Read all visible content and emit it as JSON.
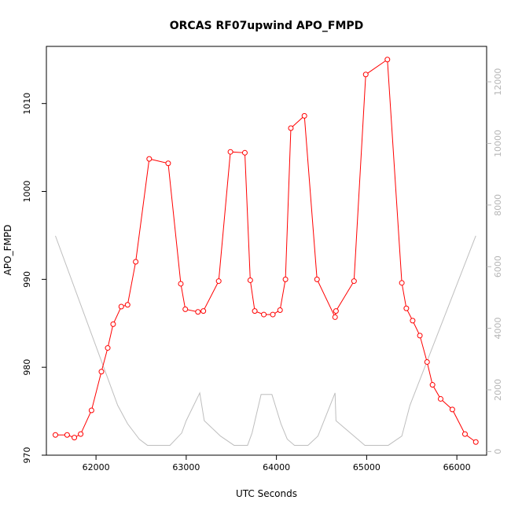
{
  "chart_data": {
    "type": "line",
    "title": "ORCAS RF07upwind APO_FMPD",
    "xlabel": "UTC Seconds",
    "ylabel": "APO_FMPD",
    "xlim": [
      61450,
      66330
    ],
    "ylim": [
      970,
      1016.5
    ],
    "y2lim": [
      -120,
      13150
    ],
    "x_ticks": [
      62000,
      63000,
      64000,
      65000,
      66000
    ],
    "y_ticks": [
      970,
      980,
      990,
      1000,
      1010
    ],
    "y2_ticks": [
      0,
      2000,
      4000,
      6000,
      8000,
      10000,
      12000
    ],
    "grid": false,
    "series": [
      {
        "color": "#ff0000",
        "marker": "circle",
        "x": [
          61550,
          61680,
          61760,
          61830,
          61950,
          62060,
          62130,
          62190,
          62280,
          62350,
          62440,
          62590,
          62800,
          62940,
          62990,
          63130,
          63190,
          63360,
          63490,
          63650,
          63710,
          63760,
          63860,
          63960,
          64040,
          64100,
          64160,
          64310,
          64450,
          64650,
          64660,
          64860,
          64990,
          65230,
          65390,
          65440,
          65510,
          65590,
          65670,
          65730,
          65820,
          65950,
          66090,
          66210
        ],
        "y": [
          972.3,
          972.3,
          972.0,
          972.4,
          975.1,
          979.5,
          982.2,
          984.9,
          986.9,
          987.1,
          992.0,
          1003.7,
          1003.2,
          989.5,
          986.6,
          986.3,
          986.4,
          989.8,
          1004.5,
          1004.4,
          989.9,
          986.4,
          986.0,
          986.0,
          986.5,
          990.0,
          1007.2,
          1008.6,
          990.0,
          985.7,
          986.4,
          989.8,
          1013.3,
          1015.0,
          989.6,
          986.7,
          985.3,
          983.6,
          980.6,
          978.0,
          976.4,
          975.2,
          972.4,
          971.5
        ]
      },
      {
        "color": "#bebebe",
        "axis": "right",
        "x": [
          61550,
          62240,
          62350,
          62480,
          62570,
          62730,
          62820,
          62950,
          63000,
          63150,
          63200,
          63380,
          63530,
          63680,
          63730,
          63830,
          63950,
          64050,
          64120,
          64200,
          64350,
          64460,
          64650,
          64660,
          64900,
          64980,
          65240,
          65390,
          65480,
          66210
        ],
        "y": [
          7000,
          1500,
          900,
          400,
          200,
          200,
          200,
          600,
          1000,
          1900,
          1000,
          500,
          200,
          200,
          600,
          1850,
          1850,
          900,
          400,
          200,
          200,
          500,
          1900,
          1000,
          400,
          200,
          200,
          500,
          1500,
          7000
        ]
      }
    ]
  }
}
